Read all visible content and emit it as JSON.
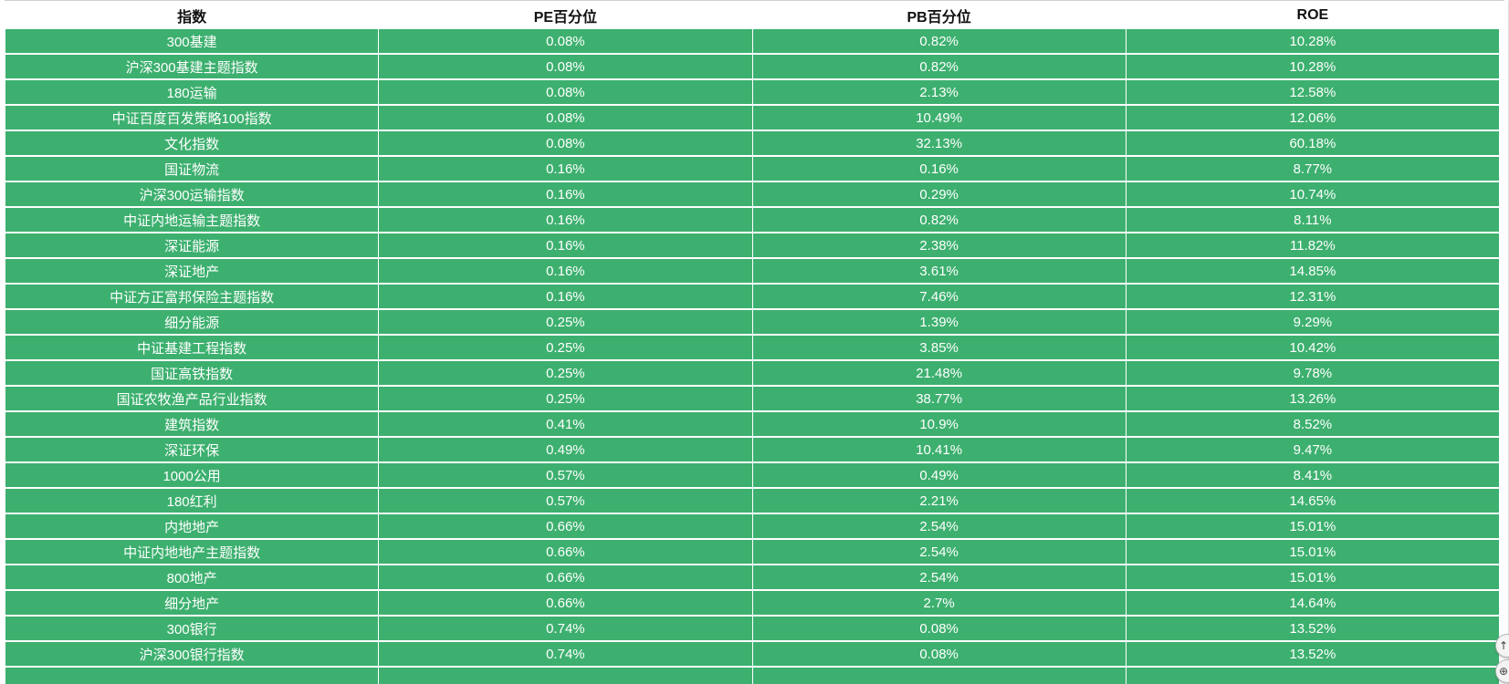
{
  "table": {
    "headers": [
      "指数",
      "PE百分位",
      "PB百分位",
      "ROE"
    ],
    "rows": [
      [
        "300基建",
        "0.08%",
        "0.82%",
        "10.28%"
      ],
      [
        "沪深300基建主题指数",
        "0.08%",
        "0.82%",
        "10.28%"
      ],
      [
        "180运输",
        "0.08%",
        "2.13%",
        "12.58%"
      ],
      [
        "中证百度百发策略100指数",
        "0.08%",
        "10.49%",
        "12.06%"
      ],
      [
        "文化指数",
        "0.08%",
        "32.13%",
        "60.18%"
      ],
      [
        "国证物流",
        "0.16%",
        "0.16%",
        "8.77%"
      ],
      [
        "沪深300运输指数",
        "0.16%",
        "0.29%",
        "10.74%"
      ],
      [
        "中证内地运输主题指数",
        "0.16%",
        "0.82%",
        "8.11%"
      ],
      [
        "深证能源",
        "0.16%",
        "2.38%",
        "11.82%"
      ],
      [
        "深证地产",
        "0.16%",
        "3.61%",
        "14.85%"
      ],
      [
        "中证方正富邦保险主题指数",
        "0.16%",
        "7.46%",
        "12.31%"
      ],
      [
        "细分能源",
        "0.25%",
        "1.39%",
        "9.29%"
      ],
      [
        "中证基建工程指数",
        "0.25%",
        "3.85%",
        "10.42%"
      ],
      [
        "国证高铁指数",
        "0.25%",
        "21.48%",
        "9.78%"
      ],
      [
        "国证农牧渔产品行业指数",
        "0.25%",
        "38.77%",
        "13.26%"
      ],
      [
        "建筑指数",
        "0.41%",
        "10.9%",
        "8.52%"
      ],
      [
        "深证环保",
        "0.49%",
        "10.41%",
        "9.47%"
      ],
      [
        "1000公用",
        "0.57%",
        "0.49%",
        "8.41%"
      ],
      [
        "180红利",
        "0.57%",
        "2.21%",
        "14.65%"
      ],
      [
        "内地地产",
        "0.66%",
        "2.54%",
        "15.01%"
      ],
      [
        "中证内地地产主题指数",
        "0.66%",
        "2.54%",
        "15.01%"
      ],
      [
        "800地产",
        "0.66%",
        "2.54%",
        "15.01%"
      ],
      [
        "细分地产",
        "0.66%",
        "2.7%",
        "14.64%"
      ],
      [
        "300银行",
        "0.74%",
        "0.08%",
        "13.52%"
      ],
      [
        "沪深300银行指数",
        "0.74%",
        "0.08%",
        "13.52%"
      ],
      [
        "",
        "",
        "",
        ""
      ]
    ]
  },
  "colors": {
    "row_background": "#3db06f",
    "row_text": "#ffffff",
    "header_text": "#111111"
  },
  "icons": {
    "floating_button_1": "back-to-top-icon",
    "floating_button_2": "share-icon"
  }
}
